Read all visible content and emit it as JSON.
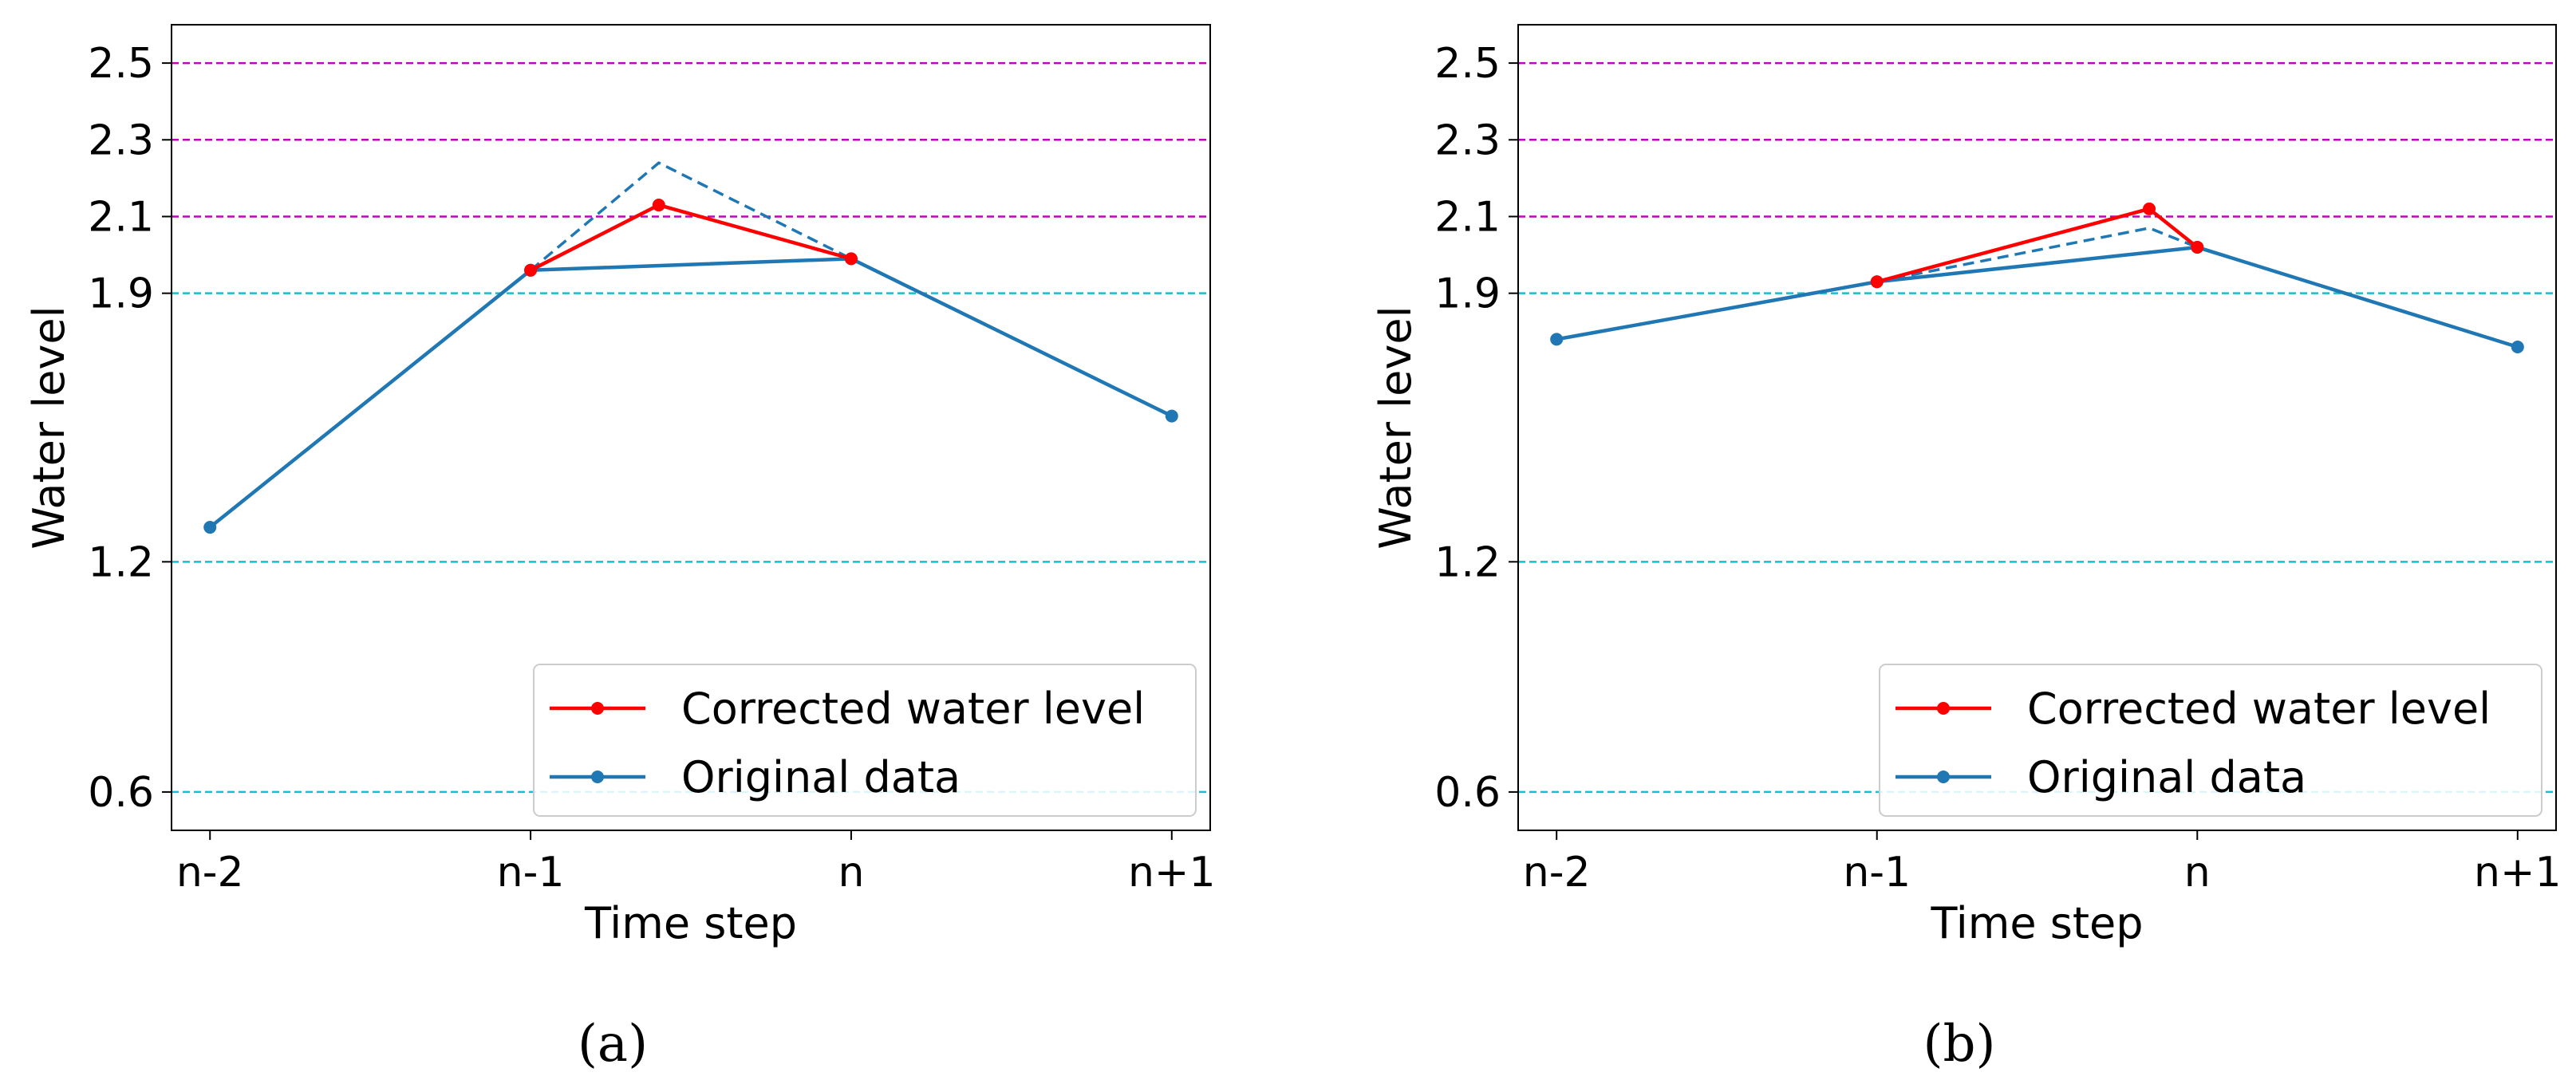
{
  "chart_data": [
    {
      "type": "line",
      "caption": "(a)",
      "xlabel": "Time step",
      "ylabel": "Water level",
      "categories": [
        "n-2",
        "n-1",
        "n",
        "n+1"
      ],
      "yticks": [
        "0.6",
        "1.2",
        "1.9",
        "2.1",
        "2.3",
        "2.5"
      ],
      "y_tick_values": [
        0.6,
        1.2,
        1.9,
        2.1,
        2.3,
        2.5
      ],
      "xlim": [
        -0.12,
        3.12
      ],
      "ylim": [
        0.5,
        2.6
      ],
      "thresholds": [
        {
          "value": 0.6,
          "color": "#17becf"
        },
        {
          "value": 1.2,
          "color": "#17becf"
        },
        {
          "value": 1.9,
          "color": "#17becf"
        },
        {
          "value": 2.1,
          "color": "#c000c0"
        },
        {
          "value": 2.3,
          "color": "#c000c0"
        },
        {
          "value": 2.5,
          "color": "#c000c0"
        }
      ],
      "legend": {
        "position": "lower right",
        "entries": [
          {
            "label": "Corrected water level",
            "color": "#ff0000"
          },
          {
            "label": "Original data",
            "color": "#1f77b4"
          }
        ]
      },
      "series": [
        {
          "name": "Corrected water level",
          "color": "#ff0000",
          "style": "solid",
          "markers": true,
          "points": [
            [
              1,
              1.96
            ],
            [
              1.4,
              2.13
            ],
            [
              2,
              1.99
            ]
          ]
        },
        {
          "name": "Original data",
          "color": "#1f77b4",
          "style": "solid",
          "markers": true,
          "points": [
            [
              0,
              1.29
            ],
            [
              1,
              1.96
            ],
            [
              2,
              1.99
            ],
            [
              3,
              1.58
            ]
          ]
        },
        {
          "color": "#1f77b4",
          "style": "dashed",
          "markers": false,
          "points": [
            [
              1,
              1.96
            ],
            [
              1.4,
              2.24
            ],
            [
              2,
              1.99
            ]
          ]
        }
      ]
    },
    {
      "type": "line",
      "caption": "(b)",
      "xlabel": "Time step",
      "ylabel": "Water level",
      "categories": [
        "n-2",
        "n-1",
        "n",
        "n+1"
      ],
      "yticks": [
        "0.6",
        "1.2",
        "1.9",
        "2.1",
        "2.3",
        "2.5"
      ],
      "y_tick_values": [
        0.6,
        1.2,
        1.9,
        2.1,
        2.3,
        2.5
      ],
      "xlim": [
        -0.12,
        3.12
      ],
      "ylim": [
        0.5,
        2.6
      ],
      "thresholds": [
        {
          "value": 0.6,
          "color": "#17becf"
        },
        {
          "value": 1.2,
          "color": "#17becf"
        },
        {
          "value": 1.9,
          "color": "#17becf"
        },
        {
          "value": 2.1,
          "color": "#c000c0"
        },
        {
          "value": 2.3,
          "color": "#c000c0"
        },
        {
          "value": 2.5,
          "color": "#c000c0"
        }
      ],
      "legend": {
        "position": "lower right",
        "entries": [
          {
            "label": "Corrected water level",
            "color": "#ff0000"
          },
          {
            "label": "Original data",
            "color": "#1f77b4"
          }
        ]
      },
      "series": [
        {
          "name": "Corrected water level",
          "color": "#ff0000",
          "style": "solid",
          "markers": true,
          "points": [
            [
              1,
              1.93
            ],
            [
              1.85,
              2.12
            ],
            [
              2,
              2.02
            ]
          ]
        },
        {
          "name": "Original data",
          "color": "#1f77b4",
          "style": "solid",
          "markers": true,
          "points": [
            [
              0,
              1.78
            ],
            [
              1,
              1.93
            ],
            [
              2,
              2.02
            ],
            [
              3,
              1.76
            ]
          ]
        },
        {
          "color": "#1f77b4",
          "style": "dashed",
          "markers": false,
          "points": [
            [
              1,
              1.93
            ],
            [
              1.85,
              2.07
            ],
            [
              2,
              2.02
            ]
          ]
        }
      ]
    }
  ]
}
